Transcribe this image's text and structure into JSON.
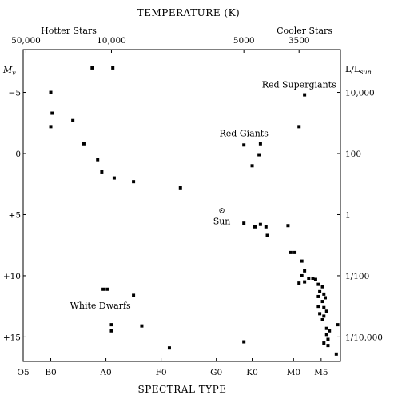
{
  "chart_data": {
    "type": "scatter",
    "title_top": "TEMPERATURE (K)",
    "xlabel": "SPECTRAL TYPE",
    "top_left_label": "Hotter Stars",
    "top_right_label": "Cooler Stars",
    "left_axis_label": "M",
    "left_axis_label_sub": "v",
    "right_axis_label": "L/L",
    "right_axis_label_sub": "sun",
    "x_ticks": [
      {
        "label": "O5",
        "x": 0
      },
      {
        "label": "B0",
        "x": 1
      },
      {
        "label": "A0",
        "x": 3
      },
      {
        "label": "F0",
        "x": 5
      },
      {
        "label": "G0",
        "x": 7
      },
      {
        "label": "K0",
        "x": 8.3
      },
      {
        "label": "M0",
        "x": 9.8
      },
      {
        "label": "M5",
        "x": 10.8
      }
    ],
    "temp_ticks": [
      {
        "label": "50,000",
        "x": 0.1
      },
      {
        "label": "10,000",
        "x": 3.2
      },
      {
        "label": "5000",
        "x": 8.0
      },
      {
        "label": "3500",
        "x": 10.0
      }
    ],
    "y_ticks": [
      {
        "label": "−5",
        "y": -5
      },
      {
        "label": "0",
        "y": 0
      },
      {
        "label": "+5",
        "y": 5
      },
      {
        "label": "+10",
        "y": 10
      },
      {
        "label": "+15",
        "y": 15
      }
    ],
    "lum_ticks": [
      {
        "label": "10,000",
        "y": -5
      },
      {
        "label": "100",
        "y": 0
      },
      {
        "label": "1",
        "y": 5
      },
      {
        "label": "1/100",
        "y": 10
      },
      {
        "label": "1/10,000",
        "y": 15
      }
    ],
    "xlim": [
      0,
      11.5
    ],
    "ylim": [
      -8.5,
      17
    ],
    "annotations": [
      {
        "text": "Red Supergiants",
        "x": 10.0,
        "y": -5.4
      },
      {
        "text": "Red Giants",
        "x": 8.0,
        "y": -1.4
      },
      {
        "text": "Sun",
        "x": 7.2,
        "y": 5.8
      },
      {
        "text": "White Dwarfs",
        "x": 2.8,
        "y": 12.7
      }
    ],
    "sun": {
      "x": 7.2,
      "y": 4.6,
      "marker": "⊙"
    },
    "points": [
      {
        "x": 2.5,
        "y": -7.0
      },
      {
        "x": 3.25,
        "y": -7.0
      },
      {
        "x": 1.0,
        "y": -5.0
      },
      {
        "x": 1.05,
        "y": -3.3
      },
      {
        "x": 1.0,
        "y": -2.2
      },
      {
        "x": 1.8,
        "y": -2.7
      },
      {
        "x": 2.2,
        "y": -0.8
      },
      {
        "x": 2.7,
        "y": 0.5
      },
      {
        "x": 2.85,
        "y": 1.5
      },
      {
        "x": 3.3,
        "y": 2.0
      },
      {
        "x": 4.0,
        "y": 2.3
      },
      {
        "x": 5.7,
        "y": 2.8
      },
      {
        "x": 10.2,
        "y": -4.8
      },
      {
        "x": 10.0,
        "y": -2.2
      },
      {
        "x": 8.0,
        "y": -0.7
      },
      {
        "x": 8.6,
        "y": -0.8
      },
      {
        "x": 8.55,
        "y": 0.1
      },
      {
        "x": 8.3,
        "y": 1.0
      },
      {
        "x": 8.0,
        "y": 5.7
      },
      {
        "x": 8.4,
        "y": 6.0
      },
      {
        "x": 8.6,
        "y": 5.8
      },
      {
        "x": 8.8,
        "y": 6.0
      },
      {
        "x": 8.85,
        "y": 6.7
      },
      {
        "x": 9.6,
        "y": 5.9
      },
      {
        "x": 9.7,
        "y": 8.1
      },
      {
        "x": 9.85,
        "y": 8.1
      },
      {
        "x": 10.1,
        "y": 8.8
      },
      {
        "x": 10.2,
        "y": 9.6
      },
      {
        "x": 10.1,
        "y": 10.0
      },
      {
        "x": 10.35,
        "y": 10.2
      },
      {
        "x": 10.5,
        "y": 10.2
      },
      {
        "x": 10.2,
        "y": 10.5
      },
      {
        "x": 10.0,
        "y": 10.6
      },
      {
        "x": 10.6,
        "y": 10.3
      },
      {
        "x": 10.7,
        "y": 10.7
      },
      {
        "x": 10.85,
        "y": 10.9
      },
      {
        "x": 10.75,
        "y": 11.3
      },
      {
        "x": 10.9,
        "y": 11.5
      },
      {
        "x": 10.7,
        "y": 11.7
      },
      {
        "x": 10.85,
        "y": 12.1
      },
      {
        "x": 10.95,
        "y": 11.8
      },
      {
        "x": 10.7,
        "y": 12.5
      },
      {
        "x": 10.9,
        "y": 12.6
      },
      {
        "x": 10.75,
        "y": 13.1
      },
      {
        "x": 10.9,
        "y": 13.3
      },
      {
        "x": 11.0,
        "y": 12.9
      },
      {
        "x": 10.85,
        "y": 13.6
      },
      {
        "x": 11.0,
        "y": 14.3
      },
      {
        "x": 11.1,
        "y": 14.5
      },
      {
        "x": 11.0,
        "y": 14.8
      },
      {
        "x": 11.05,
        "y": 15.2
      },
      {
        "x": 10.9,
        "y": 15.5
      },
      {
        "x": 11.05,
        "y": 15.7
      },
      {
        "x": 11.4,
        "y": 14.0
      },
      {
        "x": 11.35,
        "y": 16.4
      },
      {
        "x": 2.9,
        "y": 11.1
      },
      {
        "x": 3.05,
        "y": 11.1
      },
      {
        "x": 4.0,
        "y": 11.6
      },
      {
        "x": 3.2,
        "y": 14.0
      },
      {
        "x": 3.2,
        "y": 14.5
      },
      {
        "x": 4.3,
        "y": 14.1
      },
      {
        "x": 5.3,
        "y": 15.9
      },
      {
        "x": 8.0,
        "y": 15.4
      }
    ]
  }
}
